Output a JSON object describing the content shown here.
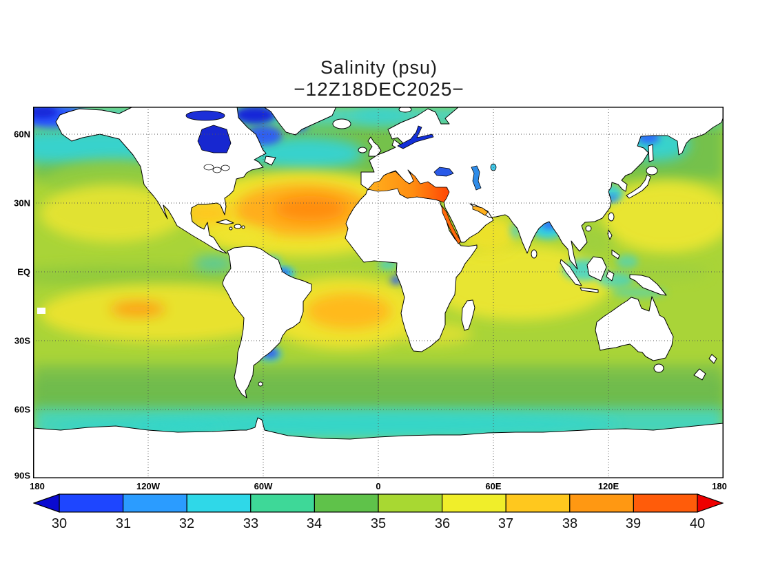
{
  "title": {
    "line1": "Salinity (psu)",
    "line2": "−12Z18DEC2025−"
  },
  "axes": {
    "lat": [
      {
        "label": "60N"
      },
      {
        "label": "30N"
      },
      {
        "label": "EQ"
      },
      {
        "label": "30S"
      },
      {
        "label": "60S"
      },
      {
        "label": "90S"
      }
    ],
    "lon": [
      {
        "label": "180"
      },
      {
        "label": "120W"
      },
      {
        "label": "60W"
      },
      {
        "label": "0"
      },
      {
        "label": "60E"
      },
      {
        "label": "120E"
      },
      {
        "label": "180"
      }
    ]
  },
  "colorbar": {
    "ticks": [
      "30",
      "31",
      "32",
      "33",
      "34",
      "35",
      "36",
      "37",
      "38",
      "39",
      "40"
    ],
    "colors": [
      "#1e46ff",
      "#2b9cff",
      "#2fd8e8",
      "#3ed898",
      "#5fc24a",
      "#a8d832",
      "#f0ee2a",
      "#ffc81e",
      "#ff9812",
      "#ff5c0a"
    ],
    "arrow_left_color": "#0a0ad0",
    "arrow_right_color": "#ee0000"
  },
  "chart_data": {
    "type": "heatmap",
    "title": "Salinity (psu)",
    "subtitle": "-12Z18DEC2025-",
    "units": "psu",
    "projection": "global equirectangular, 180W-180E, ~72N-90S",
    "x_ticks": [
      "180",
      "120W",
      "60W",
      "0",
      "60E",
      "120E",
      "180"
    ],
    "y_ticks": [
      "60N",
      "30N",
      "EQ",
      "30S",
      "60S",
      "90S"
    ],
    "gridlines": "dotted every 30 degrees",
    "legend_position": "horizontal colorbar bottom",
    "colorbar_range": {
      "min": 30,
      "max": 40,
      "tick_interval": 1,
      "ticks": [
        30,
        31,
        32,
        33,
        34,
        35,
        36,
        37,
        38,
        39,
        40
      ]
    },
    "features": [
      {
        "region": "North Atlantic subtropical gyre",
        "approx_value_psu": 37.5
      },
      {
        "region": "Eastern Mediterranean Sea",
        "approx_value_psu": 39.5
      },
      {
        "region": "Western Mediterranean Sea",
        "approx_value_psu": 38.0
      },
      {
        "region": "Red Sea",
        "approx_value_psu": 39.0
      },
      {
        "region": "Persian Gulf",
        "approx_value_psu": 38.0
      },
      {
        "region": "South Atlantic subtropical gyre",
        "approx_value_psu": 37.0
      },
      {
        "region": "South Pacific subtropical gyre",
        "approx_value_psu": 36.5
      },
      {
        "region": "Indian Ocean subtropics",
        "approx_value_psu": 36.0
      },
      {
        "region": "Mid-latitude open-ocean background",
        "approx_value_psu": 35.5
      },
      {
        "region": "Equatorial / subpolar green bands",
        "approx_value_psu": 34.5
      },
      {
        "region": "Southern Ocean circumpolar cyan band",
        "approx_value_psu": 33.0
      },
      {
        "region": "Bay of Bengal",
        "approx_value_psu": 32.5
      },
      {
        "region": "Amazon River plume",
        "approx_value_psu": 32.0
      },
      {
        "region": "Bering Sea / Arctic shelves",
        "approx_value_psu": 31.0
      },
      {
        "region": "Black Sea",
        "approx_value_psu": 31.0
      },
      {
        "region": "Hudson Bay",
        "approx_value_psu": 30.0
      },
      {
        "region": "Baltic Sea",
        "approx_value_psu": 30.0
      }
    ]
  }
}
